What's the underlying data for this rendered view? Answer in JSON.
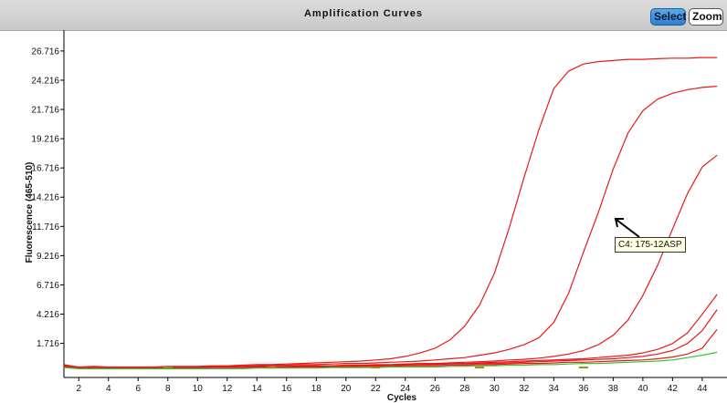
{
  "header": {
    "title": "Amplification Curves",
    "select_label": "Select",
    "zoom_label": "Zoom"
  },
  "tooltip": {
    "text": "C4: 175-12ASP"
  },
  "colors": {
    "curve": "#e8191b",
    "green_curve": "#33c433",
    "olive_marker": "#9a8a1a",
    "select_button": "#3a8ede"
  },
  "chart_data": {
    "type": "line",
    "title": "Amplification Curves",
    "xlabel": "Cycles",
    "ylabel": "Fluorescence (465-510)",
    "xlim": [
      1,
      45
    ],
    "ylim": [
      -1.2,
      28.5
    ],
    "x_ticks": [
      2,
      4,
      6,
      8,
      10,
      12,
      14,
      16,
      18,
      20,
      22,
      24,
      26,
      28,
      30,
      32,
      34,
      36,
      38,
      40,
      42,
      44
    ],
    "x_tick_labels": [
      "2",
      "4",
      "6",
      "8",
      "10",
      "12",
      "14",
      "16",
      "18",
      "20",
      "22",
      "24",
      "26",
      "28",
      "30",
      "32",
      "34",
      "36",
      "38",
      "40",
      "42",
      "44"
    ],
    "y_ticks": [
      1.716,
      4.216,
      6.716,
      9.216,
      11.716,
      14.216,
      16.716,
      19.216,
      21.716,
      24.216,
      26.716
    ],
    "y_tick_labels": [
      "1.716",
      "4.216",
      "6.716",
      "9.216",
      "11.716",
      "14.216",
      "16.716",
      "19.216",
      "21.716",
      "24.216",
      "26.716"
    ],
    "grid": false,
    "x": [
      1,
      2,
      3,
      4,
      5,
      6,
      7,
      8,
      9,
      10,
      11,
      12,
      13,
      14,
      15,
      16,
      17,
      18,
      19,
      20,
      21,
      22,
      23,
      24,
      25,
      26,
      27,
      28,
      29,
      30,
      31,
      32,
      33,
      34,
      35,
      36,
      37,
      38,
      39,
      40,
      41,
      42,
      43,
      44,
      45
    ],
    "series": [
      {
        "color": "#e8191b",
        "values": [
          -0.15,
          -0.3,
          -0.25,
          -0.3,
          -0.3,
          -0.3,
          -0.3,
          -0.25,
          -0.25,
          -0.25,
          -0.2,
          -0.2,
          -0.15,
          -0.1,
          -0.1,
          -0.05,
          0,
          0.05,
          0.1,
          0.15,
          0.2,
          0.3,
          0.4,
          0.6,
          0.9,
          1.3,
          2.0,
          3.2,
          5.0,
          7.7,
          11.6,
          15.9,
          20.0,
          23.5,
          25.0,
          25.6,
          25.8,
          25.9,
          26.0,
          26.0,
          26.05,
          26.1,
          26.1,
          26.15,
          26.15
        ]
      },
      {
        "color": "#e8191b",
        "values": [
          -0.2,
          -0.35,
          -0.3,
          -0.35,
          -0.35,
          -0.35,
          -0.35,
          -0.3,
          -0.3,
          -0.3,
          -0.25,
          -0.25,
          -0.2,
          -0.2,
          -0.15,
          -0.15,
          -0.1,
          -0.1,
          -0.05,
          0,
          0,
          0.05,
          0.1,
          0.15,
          0.2,
          0.3,
          0.4,
          0.5,
          0.7,
          0.9,
          1.2,
          1.6,
          2.2,
          3.5,
          6.0,
          9.5,
          12.9,
          16.6,
          19.7,
          21.6,
          22.6,
          23.1,
          23.4,
          23.6,
          23.7
        ]
      },
      {
        "color": "#e8191b",
        "values": [
          -0.1,
          -0.35,
          -0.35,
          -0.35,
          -0.35,
          -0.35,
          -0.35,
          -0.35,
          -0.3,
          -0.3,
          -0.3,
          -0.3,
          -0.3,
          -0.25,
          -0.25,
          -0.25,
          -0.2,
          -0.2,
          -0.2,
          -0.15,
          -0.15,
          -0.1,
          -0.1,
          -0.05,
          0,
          0,
          0.05,
          0.1,
          0.15,
          0.2,
          0.3,
          0.35,
          0.45,
          0.6,
          0.8,
          1.1,
          1.6,
          2.4,
          3.7,
          5.8,
          8.4,
          11.5,
          14.5,
          16.8,
          17.8
        ]
      },
      {
        "color": "#e8191b",
        "values": [
          -0.2,
          -0.35,
          -0.35,
          -0.35,
          -0.35,
          -0.35,
          -0.35,
          -0.35,
          -0.35,
          -0.35,
          -0.3,
          -0.3,
          -0.3,
          -0.3,
          -0.3,
          -0.25,
          -0.25,
          -0.25,
          -0.2,
          -0.2,
          -0.2,
          -0.15,
          -0.15,
          -0.1,
          -0.1,
          -0.05,
          0,
          0,
          0.05,
          0.1,
          0.15,
          0.2,
          0.25,
          0.3,
          0.35,
          0.4,
          0.5,
          0.6,
          0.7,
          0.9,
          1.2,
          1.7,
          2.6,
          4.2,
          5.9
        ]
      },
      {
        "color": "#e8191b",
        "values": [
          -0.25,
          -0.35,
          -0.35,
          -0.35,
          -0.35,
          -0.35,
          -0.35,
          -0.35,
          -0.35,
          -0.35,
          -0.3,
          -0.3,
          -0.3,
          -0.3,
          -0.3,
          -0.3,
          -0.25,
          -0.25,
          -0.25,
          -0.2,
          -0.2,
          -0.2,
          -0.15,
          -0.15,
          -0.1,
          -0.1,
          -0.05,
          -0.05,
          0,
          0,
          0.05,
          0.1,
          0.15,
          0.2,
          0.25,
          0.3,
          0.35,
          0.4,
          0.5,
          0.6,
          0.8,
          1.1,
          1.7,
          2.8,
          4.6
        ]
      },
      {
        "color": "#e8191b",
        "values": [
          -0.3,
          -0.4,
          -0.4,
          -0.4,
          -0.4,
          -0.4,
          -0.4,
          -0.4,
          -0.4,
          -0.4,
          -0.35,
          -0.35,
          -0.35,
          -0.35,
          -0.35,
          -0.35,
          -0.3,
          -0.3,
          -0.3,
          -0.3,
          -0.25,
          -0.25,
          -0.25,
          -0.2,
          -0.2,
          -0.2,
          -0.15,
          -0.15,
          -0.1,
          -0.1,
          -0.05,
          0,
          0,
          0.05,
          0.1,
          0.1,
          0.15,
          0.2,
          0.25,
          0.3,
          0.4,
          0.55,
          0.8,
          1.3,
          2.9
        ]
      },
      {
        "color": "#33c433",
        "values": [
          -0.35,
          -0.45,
          -0.45,
          -0.45,
          -0.45,
          -0.45,
          -0.45,
          -0.45,
          -0.45,
          -0.45,
          -0.45,
          -0.45,
          -0.45,
          -0.4,
          -0.4,
          -0.4,
          -0.4,
          -0.4,
          -0.35,
          -0.35,
          -0.35,
          -0.35,
          -0.3,
          -0.3,
          -0.3,
          -0.3,
          -0.25,
          -0.25,
          -0.2,
          -0.2,
          -0.15,
          -0.15,
          -0.1,
          -0.1,
          -0.05,
          0,
          0,
          0.05,
          0.1,
          0.15,
          0.2,
          0.3,
          0.5,
          0.7,
          0.95
        ]
      }
    ]
  }
}
